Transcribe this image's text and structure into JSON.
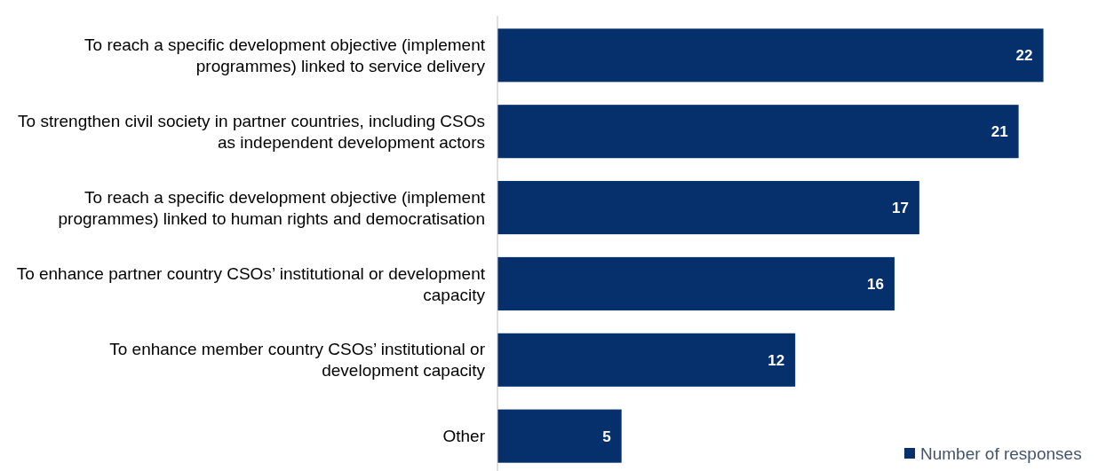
{
  "chart_data": {
    "type": "bar",
    "orientation": "horizontal",
    "categories": [
      "To reach a specific development objective (implement programmes) linked to service delivery",
      "To strengthen civil society in partner countries, including CSOs as independent development actors",
      "To reach a specific development objective (implement programmes) linked to human rights and democratisation",
      "To enhance partner country CSOs’ institutional or development capacity",
      "To enhance member country CSOs’ institutional or development capacity",
      "Other"
    ],
    "series": [
      {
        "name": "Number of responses",
        "color": "#06306b",
        "values": [
          22,
          21,
          17,
          16,
          12,
          5
        ]
      }
    ],
    "data_labels": true,
    "legend": "bottom right"
  }
}
